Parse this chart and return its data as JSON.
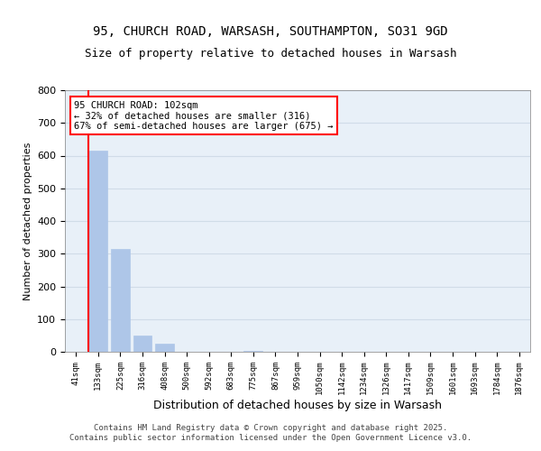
{
  "title_line1": "95, CHURCH ROAD, WARSASH, SOUTHAMPTON, SO31 9GD",
  "title_line2": "Size of property relative to detached houses in Warsash",
  "xlabel": "Distribution of detached houses by size in Warsash",
  "ylabel": "Number of detached properties",
  "bar_color": "#aec6e8",
  "bar_edge_color": "#aec6e8",
  "grid_color": "#d0dce8",
  "background_color": "#e8f0f8",
  "annotation_text": "95 CHURCH ROAD: 102sqm\n← 32% of detached houses are smaller (316)\n67% of semi-detached houses are larger (675) →",
  "annotation_box_color": "red",
  "vline_color": "red",
  "bins": [
    "41sqm",
    "133sqm",
    "225sqm",
    "316sqm",
    "408sqm",
    "500sqm",
    "592sqm",
    "683sqm",
    "775sqm",
    "867sqm",
    "959sqm",
    "1050sqm",
    "1142sqm",
    "1234sqm",
    "1326sqm",
    "1417sqm",
    "1509sqm",
    "1601sqm",
    "1693sqm",
    "1784sqm",
    "1876sqm"
  ],
  "values": [
    0,
    615,
    315,
    50,
    25,
    0,
    0,
    0,
    4,
    0,
    0,
    0,
    0,
    0,
    0,
    0,
    0,
    0,
    0,
    0,
    0
  ],
  "ylim": [
    0,
    800
  ],
  "yticks": [
    0,
    100,
    200,
    300,
    400,
    500,
    600,
    700,
    800
  ],
  "footer": "Contains HM Land Registry data © Crown copyright and database right 2025.\nContains public sector information licensed under the Open Government Licence v3.0.",
  "property_bin_index": 1
}
